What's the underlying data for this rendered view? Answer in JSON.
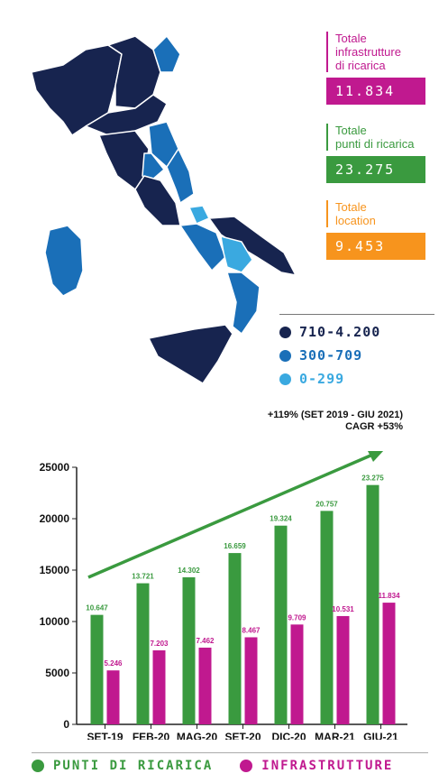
{
  "stats": [
    {
      "label": "Totale\ninfrastrutture\ndi ricarica",
      "value": "11.834",
      "color": "#c0198f"
    },
    {
      "label": "Totale\npunti di ricarica",
      "value": "23.275",
      "color": "#3a9a3f"
    },
    {
      "label": "Totale\nlocation",
      "value": "9.453",
      "color": "#f7941d"
    }
  ],
  "map_legend": [
    {
      "label": "710-4.200",
      "color": "#17244f"
    },
    {
      "label": "300-709",
      "color": "#1a6fb8"
    },
    {
      "label": "0-299",
      "color": "#3aa9e0"
    }
  ],
  "growth_note": {
    "line1": "+119%  (SET 2019 - GIU 2021)",
    "line2": "CAGR +53%"
  },
  "chart_data": {
    "type": "bar",
    "categories": [
      "SET-19",
      "FEB-20",
      "MAG-20",
      "SET-20",
      "DIC-20",
      "MAR-21",
      "GIU-21"
    ],
    "series": [
      {
        "name": "PUNTI DI RICARICA",
        "color": "#3a9a3f",
        "values": [
          10647,
          13721,
          14302,
          16659,
          19324,
          20757,
          23275
        ],
        "labels": [
          "10.647",
          "13.721",
          "14.302",
          "16.659",
          "19.324",
          "20.757",
          "23.275"
        ]
      },
      {
        "name": "INFRASTRUTTURE",
        "color": "#c0198f",
        "values": [
          5246,
          7203,
          7462,
          8467,
          9709,
          10531,
          11834
        ],
        "labels": [
          "5.246",
          "7.203",
          "7.462",
          "8.467",
          "9.709",
          "10.531",
          "11.834"
        ]
      }
    ],
    "yticks": [
      "0",
      "5000",
      "10000",
      "15000",
      "20000",
      "25000"
    ],
    "ylim": [
      0,
      25000
    ],
    "arrow_color": "#3a9a3f"
  }
}
